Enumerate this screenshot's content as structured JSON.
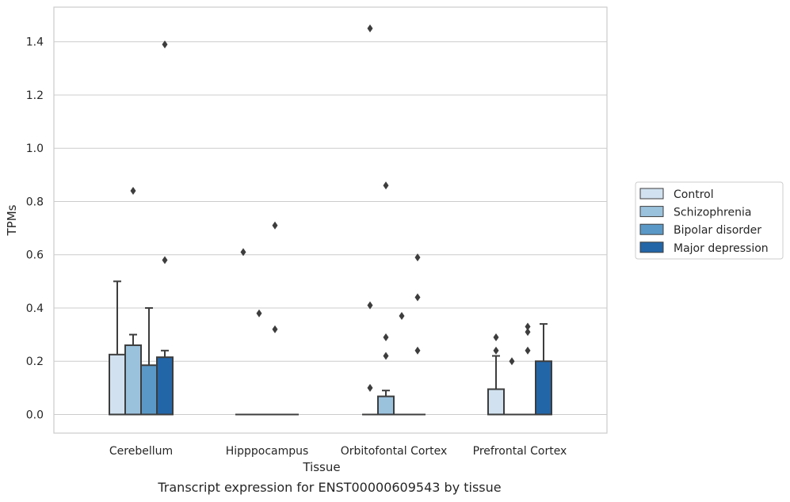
{
  "caption": "Transcript expression for ENST00000609543 by tissue",
  "chart_data": {
    "type": "box",
    "xlabel": "Tissue",
    "ylabel": "TPMs",
    "ylim": [
      -0.07,
      1.53
    ],
    "yticks": [
      0.0,
      0.2,
      0.4,
      0.6,
      0.8,
      1.0,
      1.2,
      1.4
    ],
    "grid": "horizontal",
    "legend_position": "right",
    "categories": [
      "Cerebellum",
      "Hipppocampus",
      "Orbitofontal Cortex",
      "Prefrontal Cortex"
    ],
    "series": [
      {
        "name": "Control",
        "color": "#d1e1ef",
        "boxes": [
          {
            "q1": 0.0,
            "q3": 0.225,
            "median": 0.0,
            "whisker_low": 0.0,
            "whisker_high": 0.5,
            "outliers": []
          },
          {
            "q1": 0.0,
            "q3": 0.0,
            "median": 0.0,
            "whisker_low": 0.0,
            "whisker_high": 0.0,
            "outliers": [
              0.61
            ]
          },
          {
            "q1": 0.0,
            "q3": 0.0,
            "median": 0.0,
            "whisker_low": 0.0,
            "whisker_high": 0.0,
            "outliers": [
              0.1,
              0.41,
              1.45
            ]
          },
          {
            "q1": 0.0,
            "q3": 0.095,
            "median": 0.0,
            "whisker_low": 0.0,
            "whisker_high": 0.22,
            "outliers": [
              0.24,
              0.29
            ]
          }
        ]
      },
      {
        "name": "Schizophrenia",
        "color": "#9ac2dd",
        "boxes": [
          {
            "q1": 0.0,
            "q3": 0.26,
            "median": 0.0,
            "whisker_low": 0.0,
            "whisker_high": 0.3,
            "outliers": [
              0.84
            ]
          },
          {
            "q1": 0.0,
            "q3": 0.0,
            "median": 0.0,
            "whisker_low": 0.0,
            "whisker_high": 0.0,
            "outliers": [
              0.38
            ]
          },
          {
            "q1": 0.0,
            "q3": 0.068,
            "median": 0.0,
            "whisker_low": 0.0,
            "whisker_high": 0.09,
            "outliers": [
              0.22,
              0.29,
              0.86
            ]
          },
          {
            "q1": 0.0,
            "q3": 0.0,
            "median": 0.0,
            "whisker_low": 0.0,
            "whisker_high": 0.0,
            "outliers": [
              0.2
            ]
          }
        ]
      },
      {
        "name": "Bipolar disorder",
        "color": "#5a99c7",
        "boxes": [
          {
            "q1": 0.0,
            "q3": 0.185,
            "median": 0.0,
            "whisker_low": 0.0,
            "whisker_high": 0.4,
            "outliers": []
          },
          {
            "q1": 0.0,
            "q3": 0.0,
            "median": 0.0,
            "whisker_low": 0.0,
            "whisker_high": 0.0,
            "outliers": [
              0.71,
              0.32
            ]
          },
          {
            "q1": 0.0,
            "q3": 0.0,
            "median": 0.0,
            "whisker_low": 0.0,
            "whisker_high": 0.0,
            "outliers": [
              0.37
            ]
          },
          {
            "q1": 0.0,
            "q3": 0.0,
            "median": 0.0,
            "whisker_low": 0.0,
            "whisker_high": 0.0,
            "outliers": [
              0.24,
              0.31,
              0.33
            ]
          }
        ]
      },
      {
        "name": "Major depression",
        "color": "#2366a8",
        "boxes": [
          {
            "q1": 0.0,
            "q3": 0.215,
            "median": 0.0,
            "whisker_low": 0.0,
            "whisker_high": 0.24,
            "outliers": [
              0.58,
              1.39
            ]
          },
          {
            "q1": 0.0,
            "q3": 0.0,
            "median": 0.0,
            "whisker_low": 0.0,
            "whisker_high": 0.0,
            "outliers": []
          },
          {
            "q1": 0.0,
            "q3": 0.0,
            "median": 0.0,
            "whisker_low": 0.0,
            "whisker_high": 0.0,
            "outliers": [
              0.24,
              0.44,
              0.59
            ]
          },
          {
            "q1": 0.0,
            "q3": 0.2,
            "median": 0.0,
            "whisker_low": 0.0,
            "whisker_high": 0.34,
            "outliers": []
          }
        ]
      }
    ]
  }
}
